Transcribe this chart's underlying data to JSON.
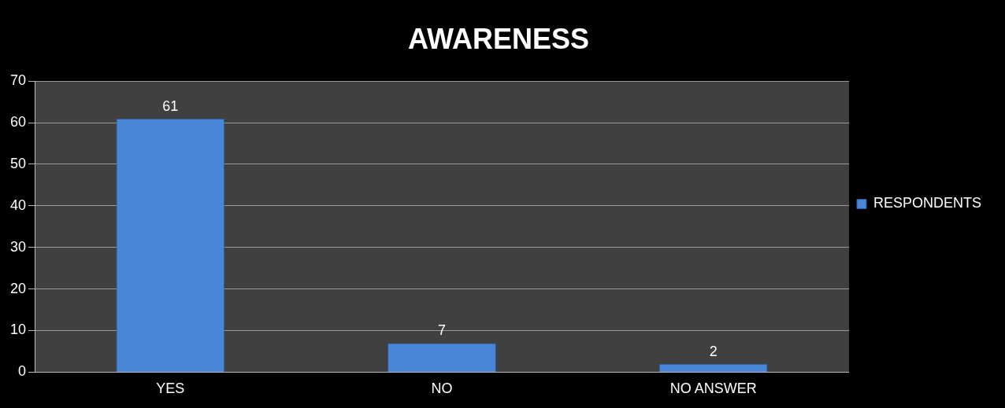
{
  "chart_data": {
    "type": "bar",
    "title": "AWARENESS",
    "categories": [
      "YES",
      "NO",
      "NO ANSWER"
    ],
    "series": [
      {
        "name": "RESPONDENTS",
        "color": "#4a86d8",
        "values": [
          61,
          7,
          2
        ]
      }
    ],
    "ylim": [
      0,
      70
    ],
    "yticks": [
      0,
      10,
      20,
      30,
      40,
      50,
      60,
      70
    ],
    "grid": "y",
    "legend": "right",
    "data_labels": true
  }
}
